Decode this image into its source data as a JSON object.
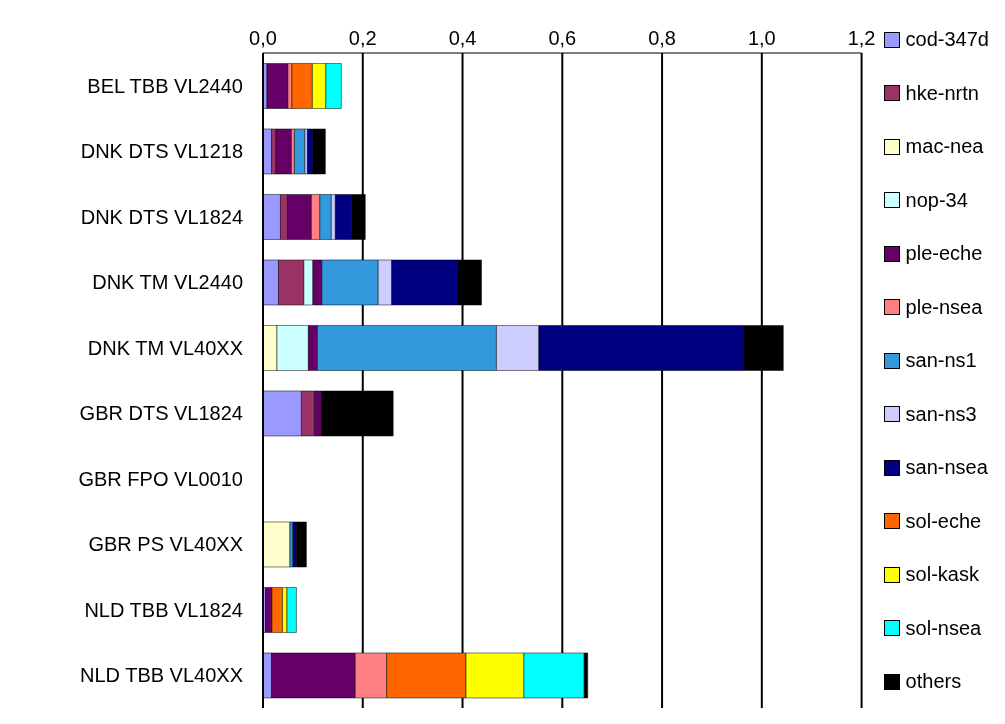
{
  "chart_data": {
    "type": "bar",
    "orientation": "horizontal",
    "stacked": true,
    "categories": [
      "BEL TBB VL2440",
      "DNK DTS VL1218",
      "DNK DTS VL1824",
      "DNK TM VL2440",
      "DNK TM VL40XX",
      "GBR DTS VL1824",
      "GBR FPO VL0010",
      "GBR PS VL40XX",
      "NLD TBB VL1824",
      "NLD TBB VL40XX"
    ],
    "series": [
      {
        "name": "cod-347d",
        "color": "#9999ff",
        "values": [
          0.008,
          0.017,
          0.035,
          0.031,
          null,
          0.077,
          null,
          null,
          0.005,
          0.017
        ]
      },
      {
        "name": "hke-nrtn",
        "color": "#993366",
        "values": [
          null,
          0.009,
          0.014,
          0.051,
          null,
          0.026,
          null,
          null,
          null,
          null
        ]
      },
      {
        "name": "mac-nea",
        "color": "#ffffcc",
        "values": [
          null,
          null,
          null,
          null,
          0.028,
          null,
          null,
          0.054,
          null,
          null
        ]
      },
      {
        "name": "nop-34",
        "color": "#ccffff",
        "values": [
          null,
          null,
          null,
          0.018,
          0.063,
          null,
          null,
          null,
          null,
          null
        ]
      },
      {
        "name": "ple-eche",
        "color": "#660066",
        "values": [
          0.042,
          0.031,
          0.048,
          0.018,
          0.018,
          0.014,
          null,
          null,
          0.013,
          0.168
        ]
      },
      {
        "name": "ple-nsea",
        "color": "#ff8080",
        "values": [
          0.008,
          0.006,
          0.017,
          null,
          null,
          null,
          null,
          null,
          null,
          0.063
        ]
      },
      {
        "name": "san-ns1",
        "color": "#3399dd",
        "values": [
          null,
          0.021,
          0.023,
          0.113,
          0.359,
          null,
          null,
          0.006,
          null,
          null
        ]
      },
      {
        "name": "san-ns3",
        "color": "#ccccff",
        "values": [
          null,
          0.005,
          0.008,
          0.027,
          0.085,
          null,
          null,
          null,
          null,
          null
        ]
      },
      {
        "name": "san-nsea",
        "color": "#000080",
        "values": [
          null,
          0.011,
          0.033,
          0.132,
          0.41,
          null,
          null,
          0.007,
          null,
          null
        ]
      },
      {
        "name": "sol-eche",
        "color": "#ff6600",
        "values": [
          0.041,
          null,
          null,
          null,
          null,
          null,
          null,
          null,
          0.021,
          0.159
        ]
      },
      {
        "name": "sol-kask",
        "color": "#ffff00",
        "values": [
          0.027,
          null,
          null,
          null,
          null,
          null,
          null,
          null,
          0.009,
          0.116
        ]
      },
      {
        "name": "sol-nsea",
        "color": "#00ffff",
        "values": [
          0.031,
          null,
          null,
          null,
          null,
          null,
          null,
          null,
          0.019,
          0.121
        ]
      },
      {
        "name": "others",
        "color": "#000000",
        "values": [
          null,
          0.025,
          0.027,
          0.048,
          0.08,
          0.144,
          null,
          0.02,
          null,
          0.007
        ]
      }
    ],
    "xlim": [
      0,
      1.2
    ],
    "xticks": [
      {
        "value": 0,
        "label": "0,0"
      },
      {
        "value": 0.2,
        "label": "0,2"
      },
      {
        "value": 0.4,
        "label": "0,4"
      },
      {
        "value": 0.6,
        "label": "0,6"
      },
      {
        "value": 0.8,
        "label": "0,8"
      },
      {
        "value": 1,
        "label": "1,0"
      },
      {
        "value": 1.2,
        "label": "1,2"
      }
    ],
    "grid": "x",
    "legend": "right"
  }
}
